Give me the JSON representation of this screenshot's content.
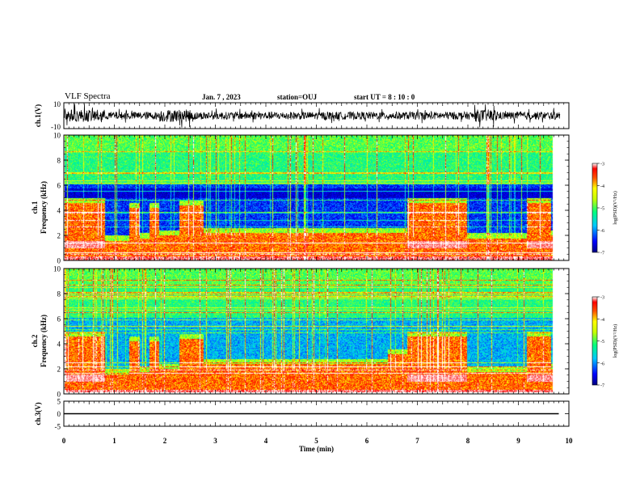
{
  "header": {
    "title": "VLF Spectra",
    "date": "Jan. 7 , 2023",
    "station": "station=OUJ",
    "start_ut": "start UT = 8 : 10 : 0"
  },
  "chart_data": [
    {
      "type": "line",
      "panel": "ch1-waveform",
      "ylabel": "ch.1(V)",
      "ylim": [
        -10,
        10
      ],
      "yticks": [
        "10",
        "-10"
      ],
      "xlim": [
        0,
        10
      ],
      "description_values": {
        "baseline": 0,
        "typical_amplitude": 3,
        "burst_amplitude": 6
      }
    },
    {
      "type": "heatmap",
      "panel": "ch1-spectrogram",
      "ylabel_line1": "ch.1",
      "ylabel_line2": "Frequency (kHz)",
      "ylim": [
        0,
        10
      ],
      "yticks": [
        "0",
        "2",
        "4",
        "6",
        "8",
        "10"
      ],
      "xlim": [
        0,
        10
      ],
      "colorbar": {
        "label": "log(PSD)(V²/Hz)",
        "range": [
          -7,
          -3
        ],
        "ticks": [
          "-3",
          "-4",
          "-5",
          "-6",
          "-7"
        ]
      },
      "segments": [
        {
          "t0": 0.0,
          "t1": 0.8,
          "band_top": 4.6
        },
        {
          "t0": 0.8,
          "t1": 1.3,
          "band_top": 1.6
        },
        {
          "t0": 1.3,
          "t1": 1.5,
          "band_top": 4.2
        },
        {
          "t0": 1.5,
          "t1": 1.7,
          "band_top": 1.8
        },
        {
          "t0": 1.7,
          "t1": 1.9,
          "band_top": 4.2
        },
        {
          "t0": 1.9,
          "t1": 2.3,
          "band_top": 2.0
        },
        {
          "t0": 2.3,
          "t1": 2.8,
          "band_top": 4.4
        },
        {
          "t0": 2.8,
          "t1": 6.9,
          "band_top": 2.2
        },
        {
          "t0": 6.9,
          "t1": 8.1,
          "band_top": 4.6
        },
        {
          "t0": 8.1,
          "t1": 9.3,
          "band_top": 1.8
        },
        {
          "t0": 9.3,
          "t1": 9.8,
          "band_top": 4.6
        }
      ]
    },
    {
      "type": "heatmap",
      "panel": "ch2-spectrogram",
      "ylabel_line1": "ch.2",
      "ylabel_line2": "Frequency (kHz)",
      "ylim": [
        0,
        10
      ],
      "yticks": [
        "0",
        "2",
        "4",
        "6",
        "8",
        "10"
      ],
      "xlim": [
        0,
        10
      ],
      "colorbar": {
        "label": "log(PSD)(V²/Hz)",
        "range": [
          -7,
          -3
        ],
        "ticks": [
          "-3",
          "-4",
          "-5",
          "-6",
          "-7"
        ]
      },
      "segments": [
        {
          "t0": 0.0,
          "t1": 0.8,
          "band_top": 4.6
        },
        {
          "t0": 0.8,
          "t1": 1.3,
          "band_top": 1.6
        },
        {
          "t0": 1.3,
          "t1": 1.5,
          "band_top": 4.2
        },
        {
          "t0": 1.5,
          "t1": 1.7,
          "band_top": 1.8
        },
        {
          "t0": 1.7,
          "t1": 1.9,
          "band_top": 4.2
        },
        {
          "t0": 1.9,
          "t1": 2.3,
          "band_top": 2.0
        },
        {
          "t0": 2.3,
          "t1": 2.8,
          "band_top": 4.4
        },
        {
          "t0": 2.8,
          "t1": 6.5,
          "band_top": 2.4
        },
        {
          "t0": 6.5,
          "t1": 6.9,
          "band_top": 3.2
        },
        {
          "t0": 6.9,
          "t1": 8.1,
          "band_top": 4.6
        },
        {
          "t0": 8.1,
          "t1": 9.3,
          "band_top": 1.8
        },
        {
          "t0": 9.3,
          "t1": 9.8,
          "band_top": 4.6
        }
      ]
    },
    {
      "type": "line",
      "panel": "ch3-waveform",
      "ylabel": "ch.3(V)",
      "ylim": [
        -5,
        5
      ],
      "yticks": [
        "5",
        "0",
        "-5"
      ],
      "xlim": [
        0,
        10
      ],
      "x": [
        0,
        9.8
      ],
      "y": [
        0,
        0
      ],
      "xlabel": "Time (min)",
      "xticks": [
        "0",
        "1",
        "2",
        "3",
        "4",
        "5",
        "6",
        "7",
        "8",
        "9",
        "10"
      ]
    }
  ]
}
